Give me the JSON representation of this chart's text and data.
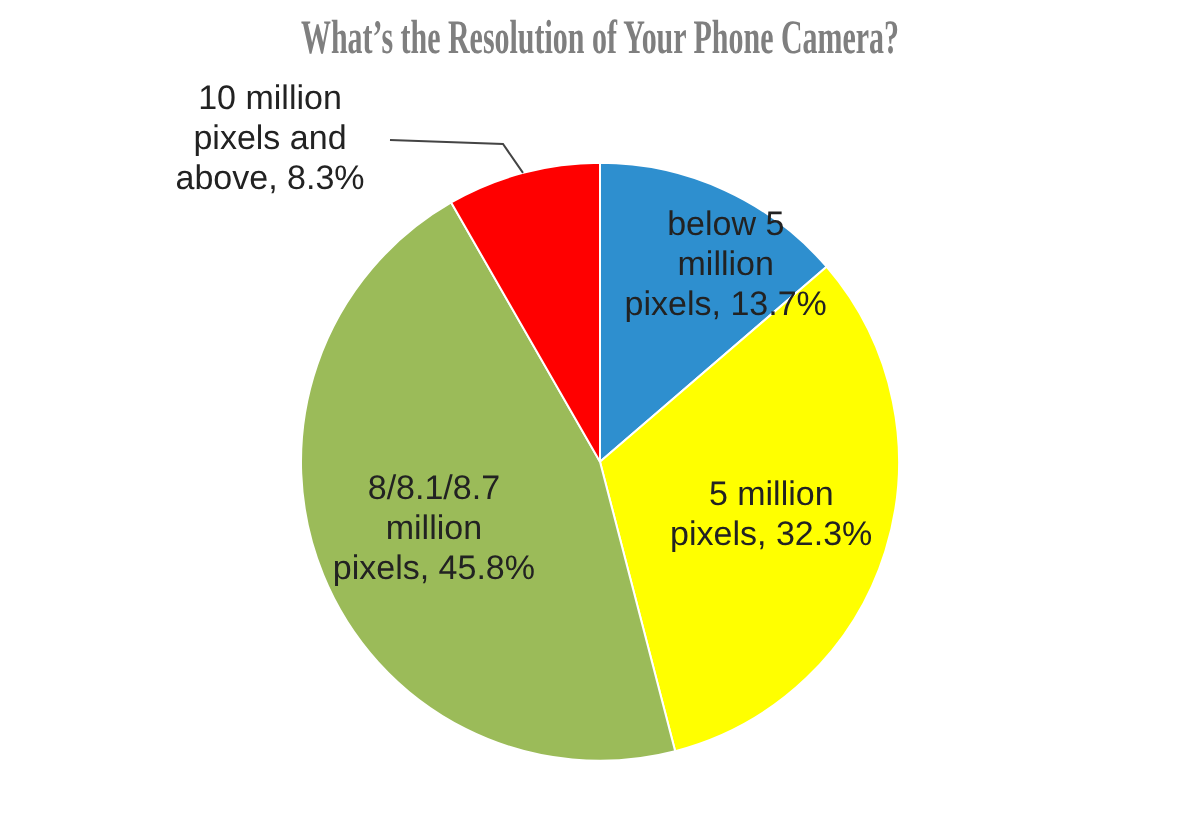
{
  "chart_data": {
    "type": "pie",
    "title": "What’s the Resolution of Your Phone Camera?",
    "categories": [
      "below 5 million pixels",
      "5 million pixels",
      "8/8.1/8.7 million pixels",
      "10 million pixels and above"
    ],
    "values": [
      13.7,
      32.3,
      45.8,
      8.3
    ],
    "colors": [
      "#2e8fcf",
      "#ffff00",
      "#9bbb59",
      "#ff0000"
    ],
    "value_labels": [
      "13.7%",
      "32.3%",
      "45.8%",
      "8.3%"
    ],
    "legend": false
  }
}
